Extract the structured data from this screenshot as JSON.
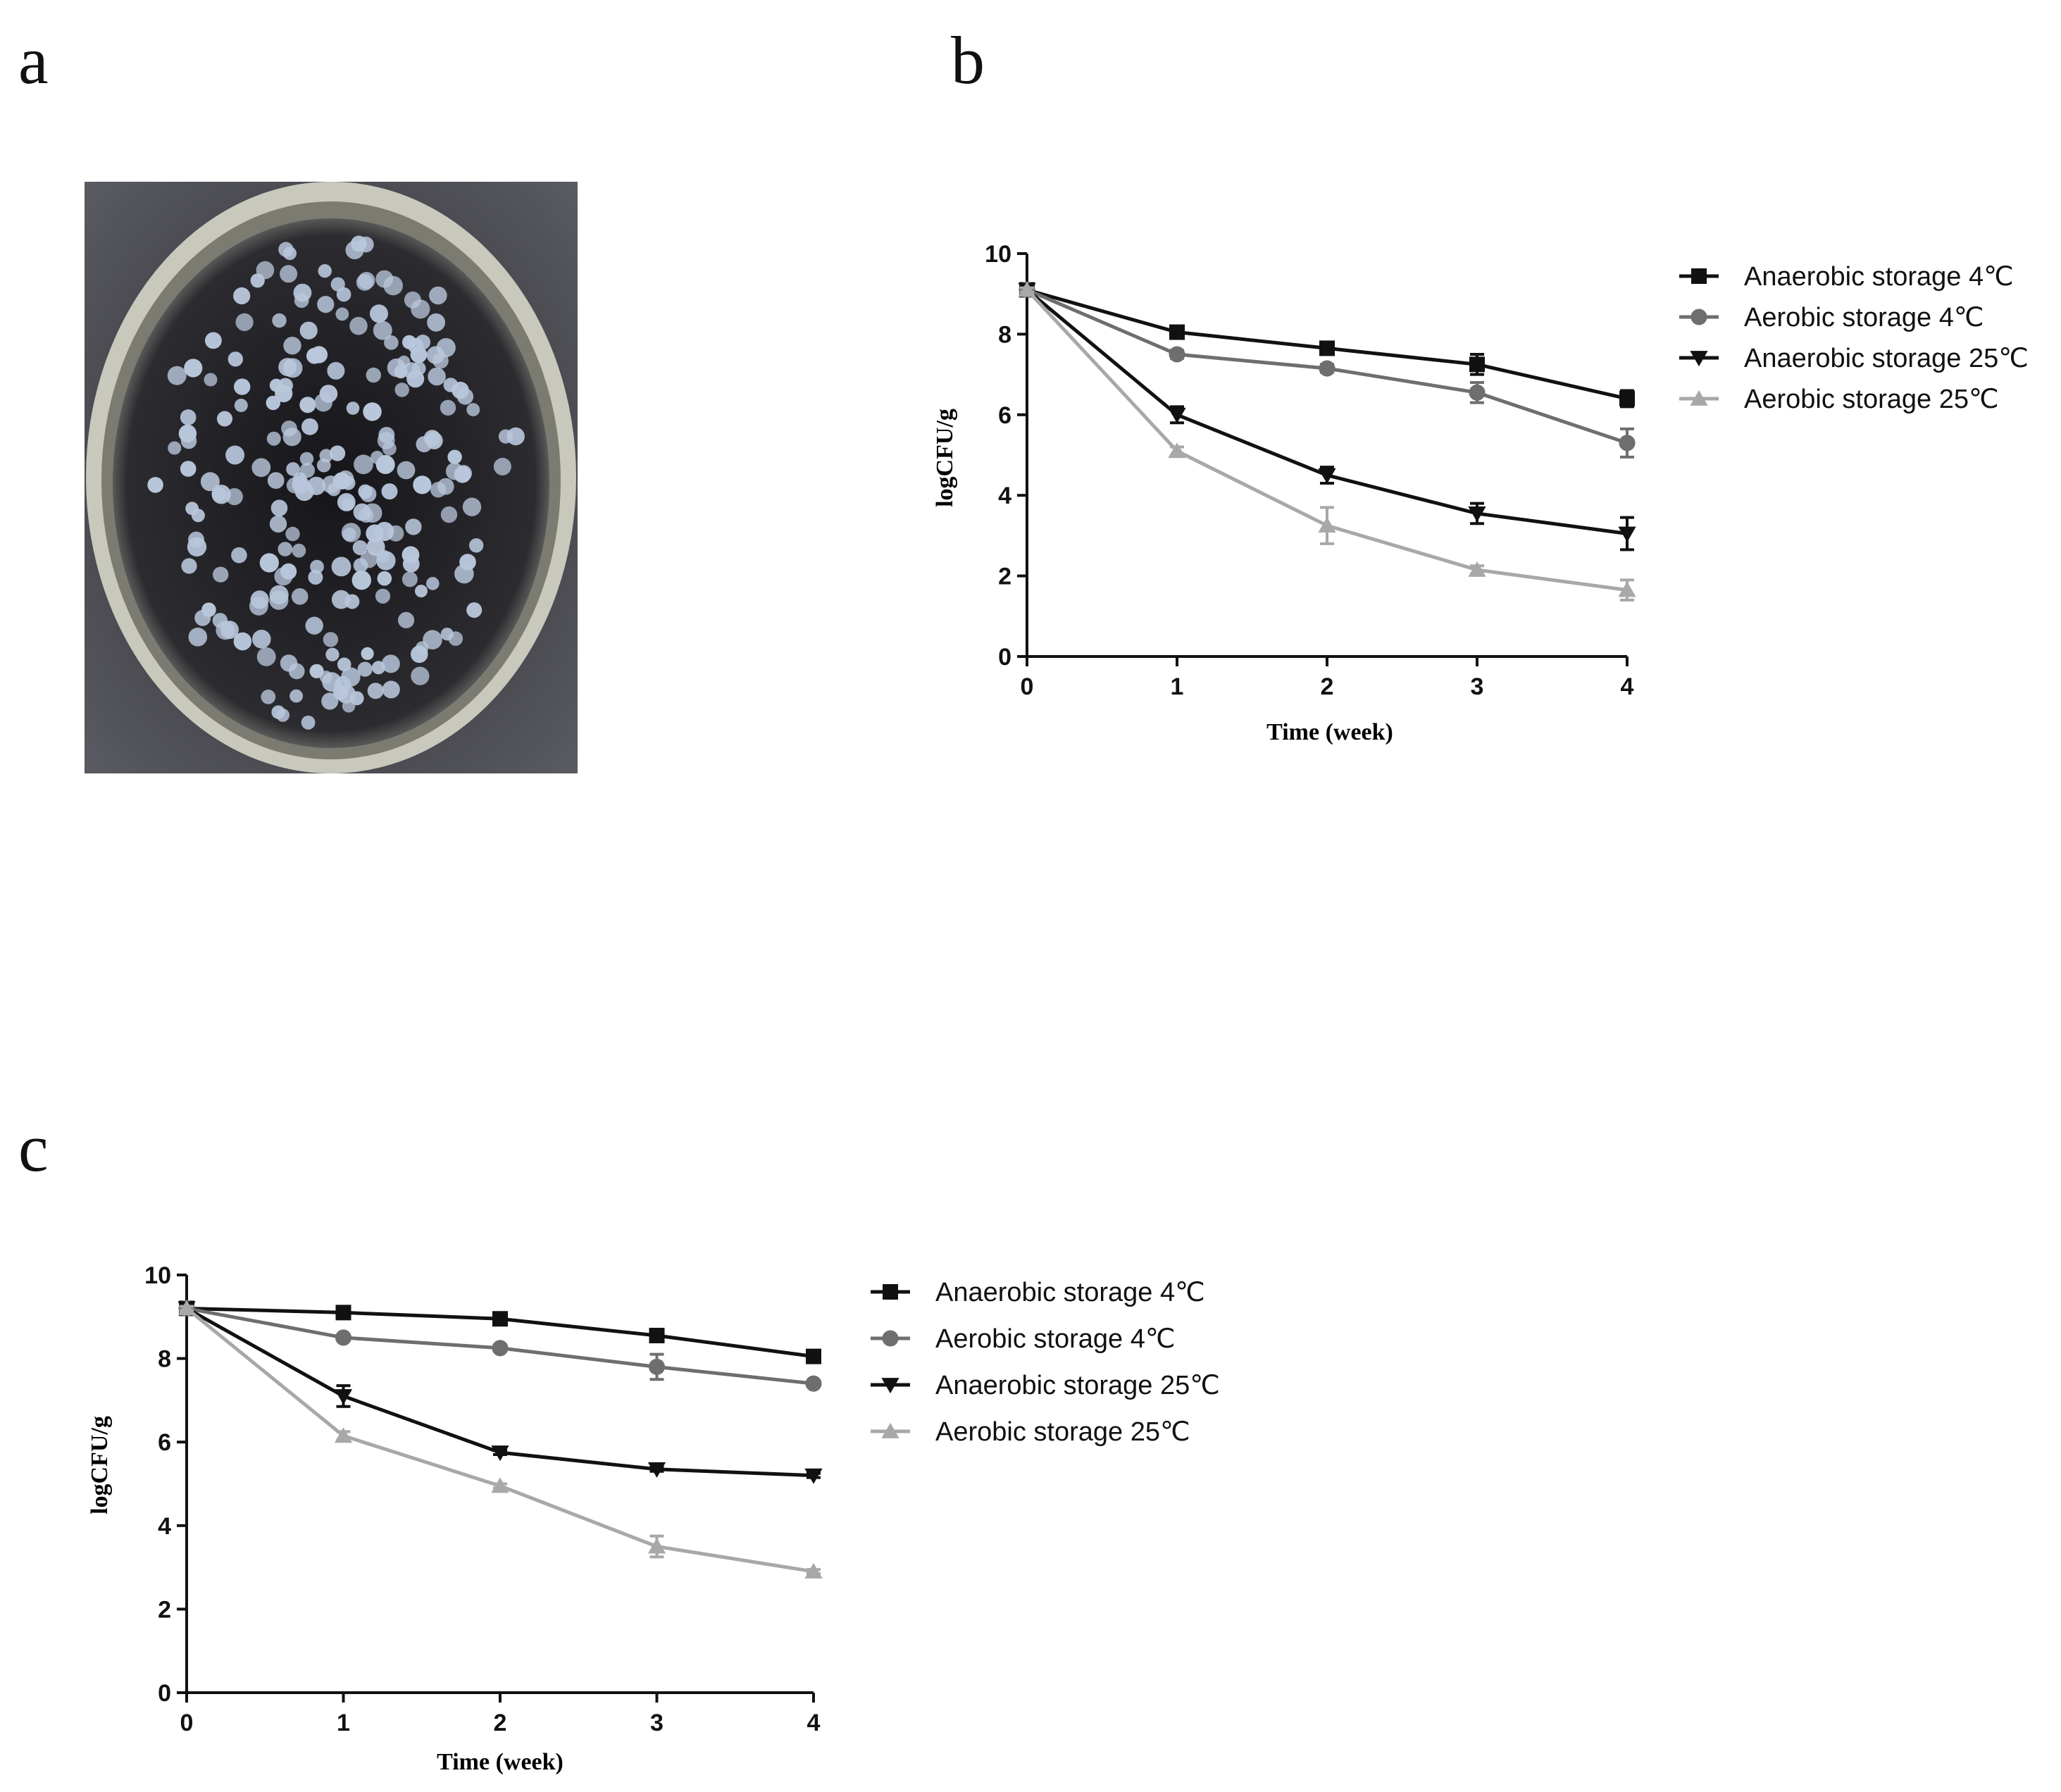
{
  "panels": {
    "a": {
      "letter": "a"
    },
    "b": {
      "letter": "b"
    },
    "c": {
      "letter": "c"
    }
  },
  "photo": {
    "description_icon": "petri-dish-colonies-photo",
    "dish_background": "#4a4a52",
    "colony_color": "#b9c7dc"
  },
  "colors": {
    "series_black": "#111111",
    "series_gray": "#6e6e6e",
    "series_light": "#a8a8a8"
  },
  "chart_data": [
    {
      "type": "line",
      "panel": "b",
      "title": "",
      "xlabel": "Time (week)",
      "ylabel": "logCFU/g",
      "x": [
        0,
        1,
        2,
        3,
        4
      ],
      "xlim": [
        0,
        4
      ],
      "ylim": [
        0,
        10
      ],
      "yticks": [
        0,
        2,
        4,
        6,
        8,
        10
      ],
      "xticks": [
        0,
        1,
        2,
        3,
        4
      ],
      "grid": false,
      "legend_position": "right",
      "series": [
        {
          "name": "Anaerobic storage 4℃",
          "marker": "square",
          "color": "#111111",
          "values": [
            9.1,
            8.05,
            7.65,
            7.25,
            6.4
          ],
          "errors": [
            0.05,
            0.1,
            0.15,
            0.25,
            0.2
          ]
        },
        {
          "name": "Aerobic storage 4℃",
          "marker": "circle",
          "color": "#6e6e6e",
          "values": [
            9.1,
            7.5,
            7.15,
            6.55,
            5.3
          ],
          "errors": [
            0.05,
            0.1,
            0.1,
            0.25,
            0.35
          ]
        },
        {
          "name": "Anaerobic storage 25℃",
          "marker": "triangle-down",
          "color": "#111111",
          "values": [
            9.1,
            6.0,
            4.5,
            3.55,
            3.05
          ],
          "errors": [
            0.05,
            0.2,
            0.2,
            0.25,
            0.4
          ]
        },
        {
          "name": "Aerobic storage 25℃",
          "marker": "triangle-up",
          "color": "#a8a8a8",
          "values": [
            9.1,
            5.1,
            3.25,
            2.15,
            1.65
          ],
          "errors": [
            0.05,
            0.1,
            0.45,
            0.1,
            0.25
          ]
        }
      ]
    },
    {
      "type": "line",
      "panel": "c",
      "title": "",
      "xlabel": "Time (week)",
      "ylabel": "logCFU/g",
      "x": [
        0,
        1,
        2,
        3,
        4
      ],
      "xlim": [
        0,
        4
      ],
      "ylim": [
        0,
        10
      ],
      "yticks": [
        0,
        2,
        4,
        6,
        8,
        10
      ],
      "xticks": [
        0,
        1,
        2,
        3,
        4
      ],
      "grid": false,
      "legend_position": "right",
      "series": [
        {
          "name": "Anaerobic storage 4℃",
          "marker": "square",
          "color": "#111111",
          "values": [
            9.2,
            9.1,
            8.95,
            8.55,
            8.05
          ],
          "errors": [
            0.05,
            0.05,
            0.05,
            0.1,
            0.05
          ]
        },
        {
          "name": "Aerobic storage 4℃",
          "marker": "circle",
          "color": "#6e6e6e",
          "values": [
            9.2,
            8.5,
            8.25,
            7.8,
            7.4
          ],
          "errors": [
            0.05,
            0.05,
            0.05,
            0.3,
            0.05
          ]
        },
        {
          "name": "Anaerobic storage 25℃",
          "marker": "triangle-down",
          "color": "#111111",
          "values": [
            9.2,
            7.1,
            5.75,
            5.35,
            5.2
          ],
          "errors": [
            0.05,
            0.25,
            0.05,
            0.05,
            0.05
          ]
        },
        {
          "name": "Aerobic storage 25℃",
          "marker": "triangle-up",
          "color": "#a8a8a8",
          "values": [
            9.2,
            6.15,
            4.95,
            3.5,
            2.9
          ],
          "errors": [
            0.05,
            0.1,
            0.05,
            0.25,
            0.05
          ]
        }
      ]
    }
  ]
}
